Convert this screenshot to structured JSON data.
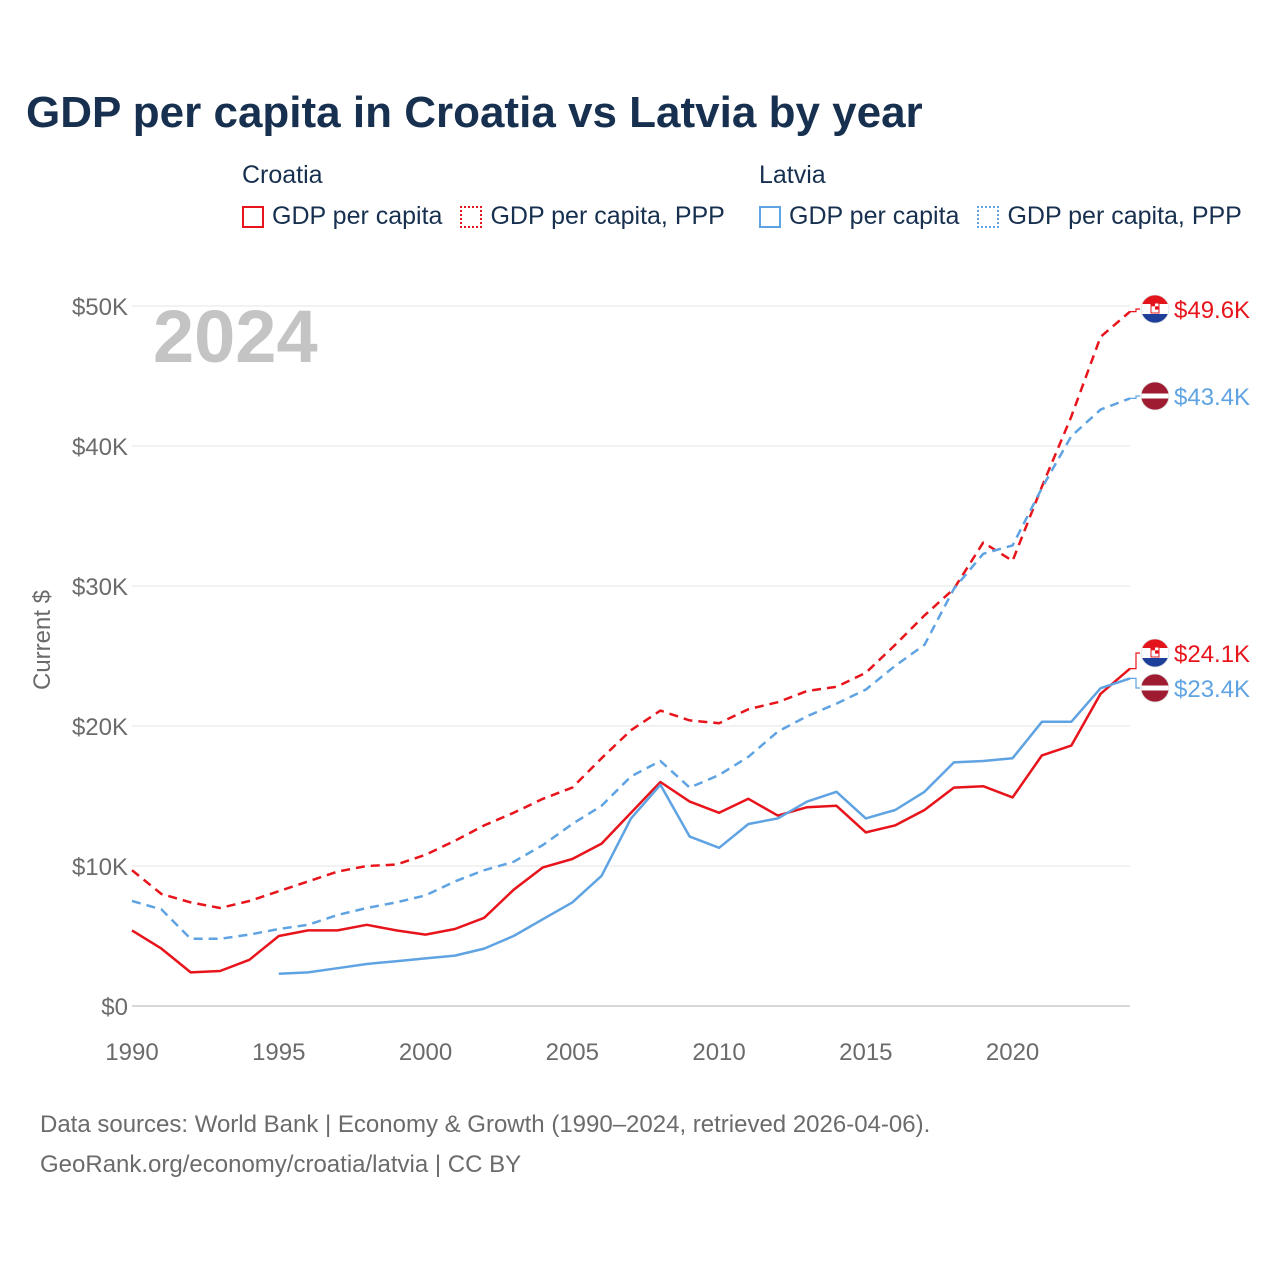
{
  "chart_data": {
    "type": "line",
    "title": "GDP per capita in Croatia vs Latvia by year",
    "ylabel": "Current $",
    "xlabel": "",
    "year_label": "2024",
    "ylim": [
      0,
      50000
    ],
    "xlim": [
      1990,
      2024
    ],
    "x_ticks": [
      1990,
      1995,
      2000,
      2005,
      2010,
      2015,
      2020
    ],
    "x_tick_labels": [
      "1990",
      "1995",
      "2000",
      "2005",
      "2010",
      "2015",
      "2020"
    ],
    "y_ticks": [
      0,
      10000,
      20000,
      30000,
      40000,
      50000
    ],
    "y_tick_labels": [
      "$0",
      "$10K",
      "$20K",
      "$30K",
      "$40K",
      "$50K"
    ],
    "legend": [
      {
        "group": "Croatia",
        "items": [
          "GDP per capita",
          "GDP per capita, PPP"
        ]
      },
      {
        "group": "Latvia",
        "items": [
          "GDP per capita",
          "GDP per capita, PPP"
        ]
      }
    ],
    "x": [
      1990,
      1991,
      1992,
      1993,
      1994,
      1995,
      1996,
      1997,
      1998,
      1999,
      2000,
      2001,
      2002,
      2003,
      2004,
      2005,
      2006,
      2007,
      2008,
      2009,
      2010,
      2011,
      2012,
      2013,
      2014,
      2015,
      2016,
      2017,
      2018,
      2019,
      2020,
      2021,
      2022,
      2023,
      2024
    ],
    "series": [
      {
        "name": "Croatia GDP per capita",
        "country": "Croatia",
        "style": "solid",
        "color": "#e8141c",
        "end_label": "$24.1K",
        "values": [
          5400,
          4100,
          2400,
          2500,
          3300,
          5000,
          5400,
          5400,
          5800,
          5400,
          5100,
          5500,
          6300,
          8300,
          9900,
          10500,
          11600,
          13800,
          16000,
          14600,
          13800,
          14800,
          13600,
          14200,
          14300,
          12400,
          12900,
          14000,
          15600,
          15700,
          14900,
          17900,
          18600,
          22300,
          24100
        ]
      },
      {
        "name": "Croatia GDP per capita, PPP",
        "country": "Croatia",
        "style": "dashed",
        "color": "#e8141c",
        "end_label": "$49.6K",
        "values": [
          9700,
          8000,
          7400,
          7000,
          7500,
          8200,
          8900,
          9600,
          10000,
          10100,
          10800,
          11800,
          12900,
          13800,
          14800,
          15600,
          17700,
          19700,
          21100,
          20400,
          20200,
          21200,
          21700,
          22500,
          22800,
          23800,
          25800,
          27900,
          29800,
          33100,
          31800,
          37100,
          42100,
          47800,
          49600
        ]
      },
      {
        "name": "Latvia GDP per capita",
        "country": "Latvia",
        "style": "solid",
        "color": "#5fa3e2",
        "end_label": "$23.4K",
        "values": [
          null,
          null,
          null,
          null,
          null,
          2300,
          2400,
          2700,
          3000,
          3200,
          3400,
          3600,
          4100,
          5000,
          6200,
          7400,
          9300,
          13400,
          15800,
          12100,
          11300,
          13000,
          13400,
          14600,
          15300,
          13400,
          14000,
          15300,
          17400,
          17500,
          17700,
          20300,
          20300,
          22700,
          23400
        ]
      },
      {
        "name": "Latvia GDP per capita, PPP",
        "country": "Latvia",
        "style": "dashed",
        "color": "#5fa3e2",
        "end_label": "$43.4K",
        "values": [
          7500,
          6900,
          4800,
          4800,
          5100,
          5500,
          5800,
          6500,
          7000,
          7400,
          7900,
          8900,
          9700,
          10300,
          11500,
          13000,
          14300,
          16400,
          17500,
          15600,
          16500,
          17800,
          19600,
          20700,
          21600,
          22600,
          24300,
          25800,
          29800,
          32300,
          32900,
          37000,
          40700,
          42600,
          43400
        ]
      }
    ],
    "sources": "Data sources: World Bank | Economy & Growth (1990–2024, retrieved 2026-04-06).",
    "attribution": "GeoRank.org/economy/croatia/latvia | CC BY"
  },
  "colors": {
    "croatia": "#e8141c",
    "latvia": "#5fa3e2",
    "title": "#17304f",
    "axis_text": "#6b6b6b",
    "grid": "#e6e6e6",
    "year_watermark": "#c4c4c4"
  },
  "icons": {
    "croatia_marker": "croatia-flag-icon",
    "latvia_marker": "latvia-flag-icon"
  }
}
